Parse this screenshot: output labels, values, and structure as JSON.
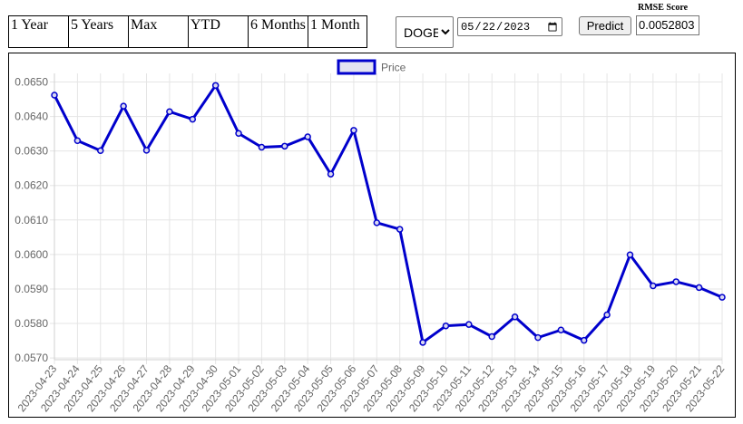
{
  "range_tabs": [
    {
      "label": "1 Year"
    },
    {
      "label": "5 Years"
    },
    {
      "label": "Max"
    },
    {
      "label": "YTD"
    },
    {
      "label": "6 Months"
    },
    {
      "label": "1 Month"
    }
  ],
  "controls": {
    "symbol": "DOGE",
    "date": "05/22/2023",
    "date_value": "2023-05-22",
    "predict_label": "Predict",
    "rmse_label": "RMSE Score",
    "rmse_value": "0.0052803"
  },
  "chart_data": {
    "type": "line",
    "legend_position": "top-center",
    "grid": true,
    "colors": {
      "line": "#0000cc",
      "legend_fill": "#e3e3f2"
    },
    "ylim": [
      0.05695,
      0.06525
    ],
    "yticks": [
      "0.0570",
      "0.0580",
      "0.0590",
      "0.0600",
      "0.0610",
      "0.0620",
      "0.0630",
      "0.0640",
      "0.0650"
    ],
    "categories": [
      "2023-04-23",
      "2023-04-24",
      "2023-04-25",
      "2023-04-26",
      "2023-04-27",
      "2023-04-28",
      "2023-04-29",
      "2023-04-30",
      "2023-05-01",
      "2023-05-02",
      "2023-05-03",
      "2023-05-04",
      "2023-05-05",
      "2023-05-06",
      "2023-05-07",
      "2023-05-08",
      "2023-05-09",
      "2023-05-10",
      "2023-05-11",
      "2023-05-12",
      "2023-05-13",
      "2023-05-14",
      "2023-05-15",
      "2023-05-16",
      "2023-05-17",
      "2023-05-18",
      "2023-05-19",
      "2023-05-20",
      "2023-05-21",
      "2023-05-22"
    ],
    "series": [
      {
        "name": "Price",
        "values": [
          0.06462,
          0.0633,
          0.06301,
          0.0643,
          0.06302,
          0.06414,
          0.06392,
          0.0649,
          0.06351,
          0.06311,
          0.06314,
          0.06341,
          0.06233,
          0.0636,
          0.06092,
          0.06073,
          0.05745,
          0.05793,
          0.05797,
          0.05762,
          0.05819,
          0.05759,
          0.05781,
          0.05751,
          0.05825,
          0.05999,
          0.05909,
          0.05921,
          0.05904,
          0.05876
        ]
      }
    ]
  }
}
